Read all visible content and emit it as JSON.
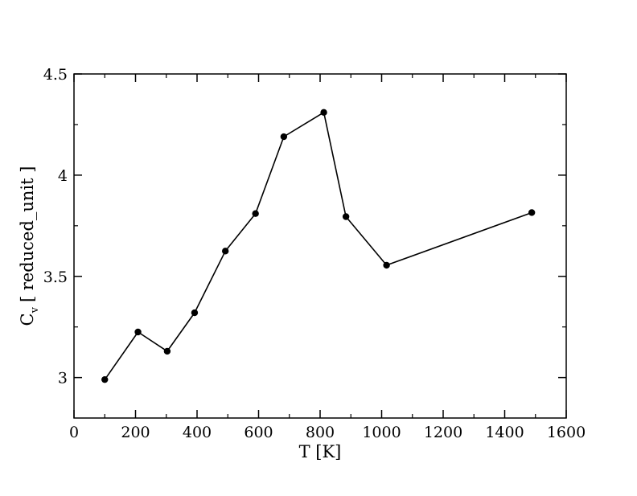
{
  "chart_data": {
    "type": "line",
    "title": "",
    "xlabel": "T [K]",
    "ylabel": "[ reduced_unit ]",
    "ylabel_symbol": "C",
    "ylabel_subscript": "v",
    "xlim": [
      0,
      1600
    ],
    "ylim": [
      2.8,
      4.5
    ],
    "xticks": [
      0,
      200,
      400,
      600,
      800,
      1000,
      1200,
      1400,
      1600
    ],
    "yticks": [
      3,
      3.5,
      4,
      4.5
    ],
    "xtick_labels": [
      "0",
      "200",
      "400",
      "600",
      "800",
      "1000",
      "1200",
      "1400",
      "1600"
    ],
    "ytick_labels": [
      "3",
      "3.5",
      "4",
      "4.5"
    ],
    "grid": false,
    "legend": "none",
    "series": [
      {
        "color": "#000000",
        "marker": "circle",
        "x": [
          100,
          208,
          303,
          392,
          492,
          590,
          682,
          812,
          884,
          1016,
          1488
        ],
        "y": [
          2.99,
          3.225,
          3.13,
          3.32,
          3.625,
          3.81,
          4.19,
          4.31,
          3.795,
          3.555,
          3.815
        ]
      }
    ]
  }
}
